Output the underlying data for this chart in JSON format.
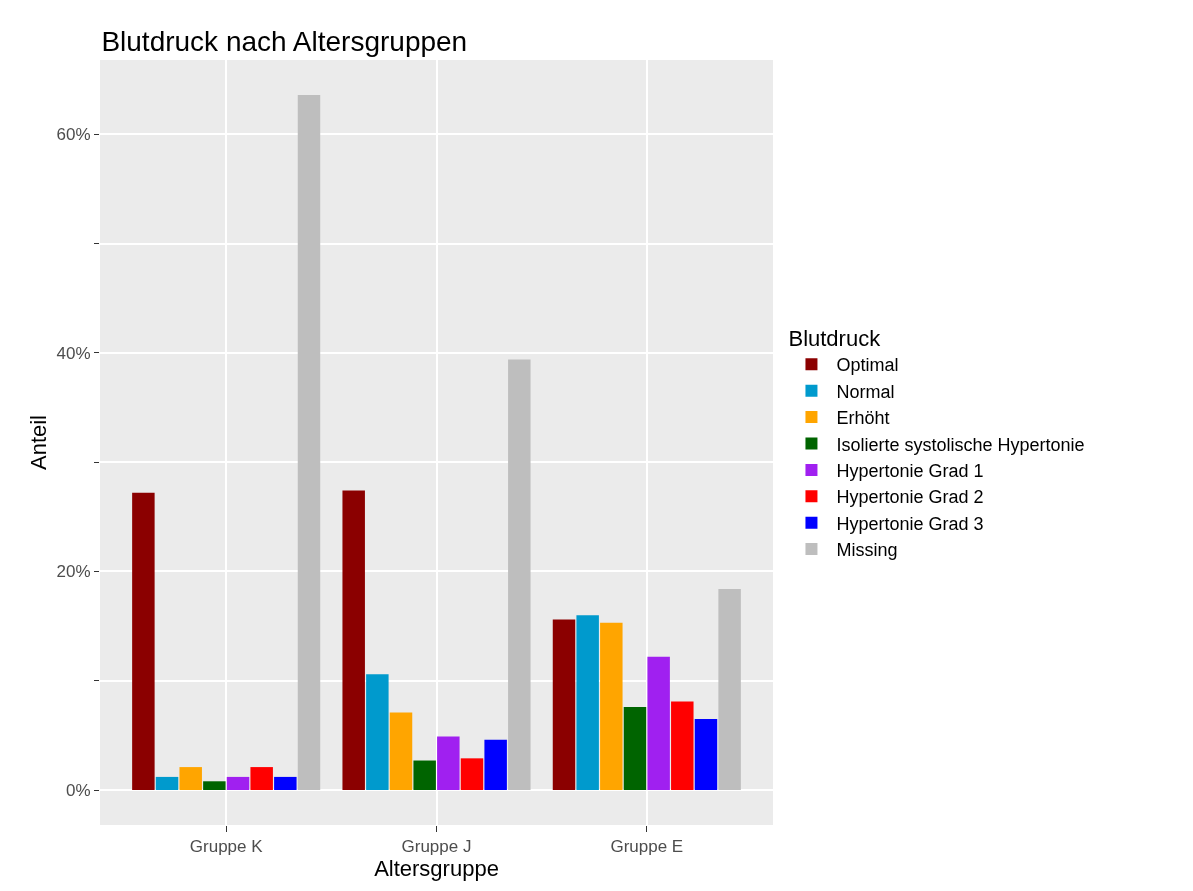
{
  "chart_data": {
    "type": "bar",
    "title": "Blutdruck nach Altersgruppen",
    "xlabel": "Altersgruppe",
    "ylabel": "Anteil",
    "legend_title": "Blutdruck",
    "categories": [
      "Gruppe K",
      "Gruppe J",
      "Gruppe E"
    ],
    "series": [
      {
        "name": "Optimal",
        "color": "#8b0000",
        "values": [
          27.2,
          27.4,
          15.6
        ]
      },
      {
        "name": "Normal",
        "color": "#009acd",
        "values": [
          1.2,
          10.6,
          16.0
        ]
      },
      {
        "name": "Erhöht",
        "color": "#ffa500",
        "values": [
          2.1,
          7.1,
          15.3
        ]
      },
      {
        "name": "Isolierte systolische Hypertonie",
        "color": "#006400",
        "values": [
          0.8,
          2.7,
          7.6
        ]
      },
      {
        "name": "Hypertonie Grad 1",
        "color": "#a020f0",
        "values": [
          1.2,
          4.9,
          12.2
        ]
      },
      {
        "name": "Hypertonie Grad 2",
        "color": "#ff0000",
        "values": [
          2.1,
          2.9,
          8.1
        ]
      },
      {
        "name": "Hypertonie Grad 3",
        "color": "#0000ff",
        "values": [
          1.2,
          4.6,
          6.5
        ]
      },
      {
        "name": "Missing",
        "color": "#bebebe",
        "values": [
          63.6,
          39.4,
          18.4
        ]
      }
    ],
    "ylim": [
      -3.2,
      66.8
    ],
    "yticks": [
      {
        "value": 0,
        "label": "0%"
      },
      {
        "value": 10,
        "label": null
      },
      {
        "value": 20,
        "label": "20%"
      },
      {
        "value": 30,
        "label": null
      },
      {
        "value": 40,
        "label": "40%"
      },
      {
        "value": 50,
        "label": null
      },
      {
        "value": 60,
        "label": "60%"
      }
    ],
    "grid": true,
    "legend": "right"
  }
}
